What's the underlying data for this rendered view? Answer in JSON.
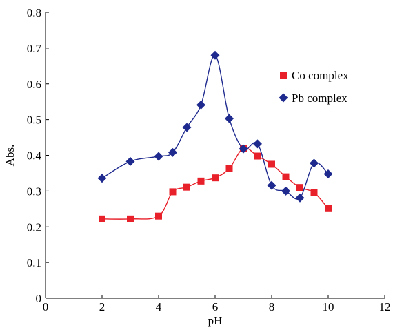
{
  "chart_data": {
    "type": "line",
    "title": "",
    "xlabel": "pH",
    "ylabel": "Abs.",
    "xlim": [
      0,
      12
    ],
    "ylim": [
      0,
      0.8
    ],
    "x_ticks": [
      "0",
      "2",
      "4",
      "6",
      "8",
      "10",
      "12"
    ],
    "y_ticks": [
      "0",
      "0.1",
      "0.2",
      "0.3",
      "0.4",
      "0.5",
      "0.6",
      "0.7",
      "0.8"
    ],
    "x_tick_values": [
      0,
      2,
      4,
      6,
      8,
      10,
      12
    ],
    "y_tick_values": [
      0,
      0.1,
      0.2,
      0.3,
      0.4,
      0.5,
      0.6,
      0.7,
      0.8
    ],
    "grid": false,
    "legend_position": "top-right",
    "series": [
      {
        "name": "Co complex",
        "marker": "square",
        "color": "#e8202a",
        "x": [
          2,
          3,
          4,
          4.5,
          5,
          5.5,
          6,
          6.5,
          7,
          7.5,
          8,
          8.5,
          9,
          9.5,
          10
        ],
        "y": [
          0.222,
          0.222,
          0.23,
          0.298,
          0.311,
          0.328,
          0.337,
          0.363,
          0.42,
          0.398,
          0.375,
          0.34,
          0.31,
          0.296,
          0.251
        ]
      },
      {
        "name": "Pb complex",
        "marker": "diamond",
        "color": "#1f2a8f",
        "x": [
          2,
          3,
          4,
          4.5,
          5,
          5.5,
          6,
          6.5,
          7,
          7.5,
          8,
          8.5,
          9,
          9.5,
          10
        ],
        "y": [
          0.336,
          0.383,
          0.397,
          0.408,
          0.478,
          0.541,
          0.68,
          0.503,
          0.418,
          0.432,
          0.316,
          0.3,
          0.281,
          0.378,
          0.348
        ]
      }
    ]
  }
}
